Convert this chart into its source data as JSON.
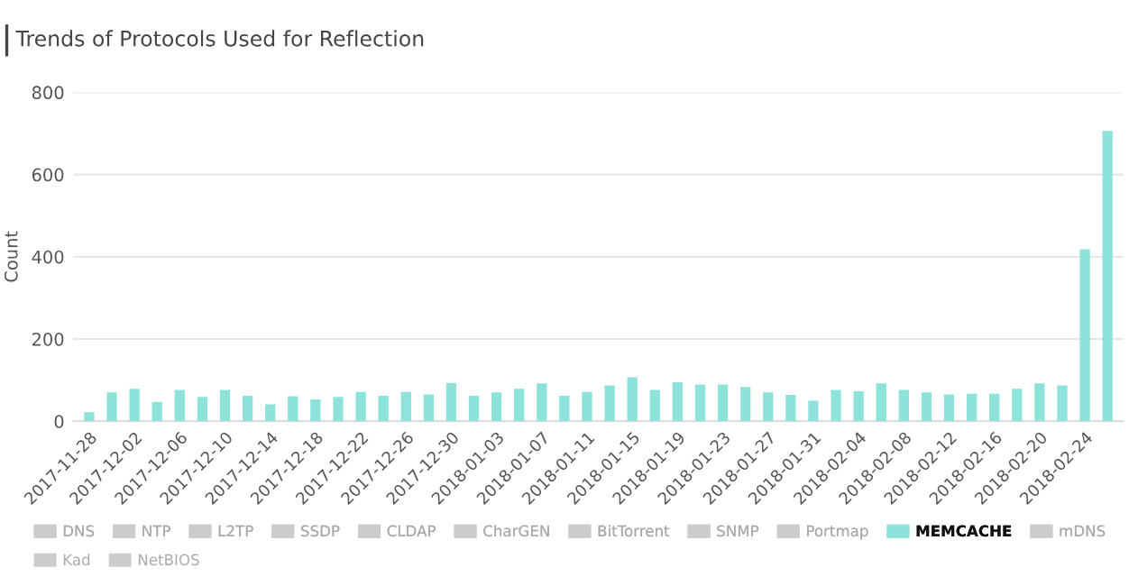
{
  "chart_data": {
    "type": "bar",
    "title": "Trends of Protocols Used for Reflection",
    "ylabel": "Count",
    "categories": [
      "2017-11-28",
      null,
      "2017-12-02",
      null,
      "2017-12-06",
      null,
      "2017-12-10",
      null,
      "2017-12-14",
      null,
      "2017-12-18",
      null,
      "2017-12-22",
      null,
      "2017-12-26",
      null,
      "2017-12-30",
      null,
      "2018-01-03",
      null,
      "2018-01-07",
      null,
      "2018-01-11",
      null,
      "2018-01-15",
      null,
      "2018-01-19",
      null,
      "2018-01-23",
      null,
      "2018-01-27",
      null,
      "2018-01-31",
      null,
      "2018-02-04",
      null,
      "2018-02-08",
      null,
      "2018-02-12",
      null,
      "2018-02-16",
      null,
      "2018-02-20",
      null,
      "2018-02-24",
      null
    ],
    "series": [
      {
        "name": "DNS",
        "color": "#cccccc",
        "values": [
          null,
          null,
          null,
          null,
          null,
          null,
          null,
          null,
          null,
          null,
          null,
          null,
          null,
          null,
          null,
          null,
          null,
          null,
          null,
          null,
          null,
          null,
          null,
          null,
          null,
          null,
          null,
          null,
          null,
          null,
          null,
          null,
          null,
          null,
          null,
          null,
          null,
          null,
          null,
          null,
          null,
          null,
          null,
          null,
          null,
          null
        ]
      },
      {
        "name": "NTP",
        "color": "#cccccc",
        "values": [
          null,
          null,
          null,
          null,
          null,
          null,
          null,
          null,
          null,
          null,
          null,
          null,
          null,
          null,
          null,
          null,
          null,
          null,
          null,
          null,
          null,
          null,
          null,
          null,
          null,
          null,
          null,
          null,
          null,
          null,
          null,
          null,
          null,
          null,
          null,
          null,
          null,
          null,
          null,
          null,
          null,
          null,
          null,
          null,
          null,
          null
        ]
      },
      {
        "name": "L2TP",
        "color": "#cccccc",
        "values": [
          null,
          null,
          null,
          null,
          null,
          null,
          null,
          null,
          null,
          null,
          null,
          null,
          null,
          null,
          null,
          null,
          null,
          null,
          null,
          null,
          null,
          null,
          null,
          null,
          null,
          null,
          null,
          null,
          null,
          null,
          null,
          null,
          null,
          null,
          null,
          null,
          null,
          null,
          null,
          null,
          null,
          null,
          null,
          null,
          null,
          null
        ]
      },
      {
        "name": "SSDP",
        "color": "#cccccc",
        "values": [
          null,
          null,
          null,
          null,
          null,
          null,
          null,
          null,
          null,
          null,
          null,
          null,
          null,
          null,
          null,
          null,
          null,
          null,
          null,
          null,
          null,
          null,
          null,
          null,
          null,
          null,
          null,
          null,
          null,
          null,
          null,
          null,
          null,
          null,
          null,
          null,
          null,
          null,
          null,
          null,
          null,
          null,
          null,
          null,
          null,
          null
        ]
      },
      {
        "name": "CLDAP",
        "color": "#cccccc",
        "values": [
          null,
          null,
          null,
          null,
          null,
          null,
          null,
          null,
          null,
          null,
          null,
          null,
          null,
          null,
          null,
          null,
          null,
          null,
          null,
          null,
          null,
          null,
          null,
          null,
          null,
          null,
          null,
          null,
          null,
          null,
          null,
          null,
          null,
          null,
          null,
          null,
          null,
          null,
          null,
          null,
          null,
          null,
          null,
          null,
          null,
          null
        ]
      },
      {
        "name": "CharGEN",
        "color": "#cccccc",
        "values": [
          null,
          null,
          null,
          null,
          null,
          null,
          null,
          null,
          null,
          null,
          null,
          null,
          null,
          null,
          null,
          null,
          null,
          null,
          null,
          null,
          null,
          null,
          null,
          null,
          null,
          null,
          null,
          null,
          null,
          null,
          null,
          null,
          null,
          null,
          null,
          null,
          null,
          null,
          null,
          null,
          null,
          null,
          null,
          null,
          null,
          null
        ]
      },
      {
        "name": "BitTorrent",
        "color": "#cccccc",
        "values": [
          null,
          null,
          null,
          null,
          null,
          null,
          null,
          null,
          null,
          null,
          null,
          null,
          null,
          null,
          null,
          null,
          null,
          null,
          null,
          null,
          null,
          null,
          null,
          null,
          null,
          null,
          null,
          null,
          null,
          null,
          null,
          null,
          null,
          null,
          null,
          null,
          null,
          null,
          null,
          null,
          null,
          null,
          null,
          null,
          null,
          null
        ]
      },
      {
        "name": "SNMP",
        "color": "#cccccc",
        "values": [
          null,
          null,
          null,
          null,
          null,
          null,
          null,
          null,
          null,
          null,
          null,
          null,
          null,
          null,
          null,
          null,
          null,
          null,
          null,
          null,
          null,
          null,
          null,
          null,
          null,
          null,
          null,
          null,
          null,
          null,
          null,
          null,
          null,
          null,
          null,
          null,
          null,
          null,
          null,
          null,
          null,
          null,
          null,
          null,
          null,
          null
        ]
      },
      {
        "name": "Portmap",
        "color": "#cccccc",
        "values": [
          null,
          null,
          null,
          null,
          null,
          null,
          null,
          null,
          null,
          null,
          null,
          null,
          null,
          null,
          null,
          null,
          null,
          null,
          null,
          null,
          null,
          null,
          null,
          null,
          null,
          null,
          null,
          null,
          null,
          null,
          null,
          null,
          null,
          null,
          null,
          null,
          null,
          null,
          null,
          null,
          null,
          null,
          null,
          null,
          null,
          null
        ]
      },
      {
        "name": "MEMCACHE",
        "color": "#8de3da",
        "values": [
          22,
          70,
          79,
          47,
          76,
          59,
          76,
          62,
          41,
          61,
          53,
          59,
          71,
          62,
          71,
          65,
          93,
          62,
          70,
          79,
          92,
          62,
          71,
          87,
          107,
          76,
          95,
          89,
          89,
          83,
          70,
          64,
          50,
          76,
          73,
          92,
          76,
          70,
          65,
          67,
          67,
          79,
          92,
          87,
          418,
          706
        ]
      },
      {
        "name": "mDNS",
        "color": "#cccccc",
        "values": [
          null,
          null,
          null,
          null,
          null,
          null,
          null,
          null,
          null,
          null,
          null,
          null,
          null,
          null,
          null,
          null,
          null,
          null,
          null,
          null,
          null,
          null,
          null,
          null,
          null,
          null,
          null,
          null,
          null,
          null,
          null,
          null,
          null,
          null,
          null,
          null,
          null,
          null,
          null,
          null,
          null,
          null,
          null,
          null,
          null,
          null
        ]
      },
      {
        "name": "Kad",
        "color": "#cccccc",
        "values": [
          null,
          null,
          null,
          null,
          null,
          null,
          null,
          null,
          null,
          null,
          null,
          null,
          null,
          null,
          null,
          null,
          null,
          null,
          null,
          null,
          null,
          null,
          null,
          null,
          null,
          null,
          null,
          null,
          null,
          null,
          null,
          null,
          null,
          null,
          null,
          null,
          null,
          null,
          null,
          null,
          null,
          null,
          null,
          null,
          null,
          null
        ]
      },
      {
        "name": "NetBIOS",
        "color": "#cccccc",
        "values": [
          null,
          null,
          null,
          null,
          null,
          null,
          null,
          null,
          null,
          null,
          null,
          null,
          null,
          null,
          null,
          null,
          null,
          null,
          null,
          null,
          null,
          null,
          null,
          null,
          null,
          null,
          null,
          null,
          null,
          null,
          null,
          null,
          null,
          null,
          null,
          null,
          null,
          null,
          null,
          null,
          null,
          null,
          null,
          null,
          null,
          null
        ]
      }
    ],
    "ylim": [
      0,
      800
    ],
    "yticks": [
      0,
      200,
      400,
      600,
      800
    ],
    "grid": "y",
    "legend": "bottom"
  }
}
